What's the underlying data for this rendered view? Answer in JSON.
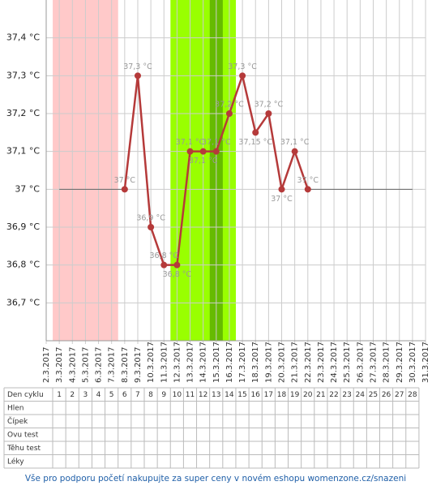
{
  "chart_data": {
    "type": "line",
    "categories": [
      "2.3.2017",
      "3.3.2017",
      "4.3.2017",
      "5.3.2017",
      "6.3.2017",
      "7.3.2017",
      "8.3.2017",
      "9.3.2017",
      "10.3.2017",
      "11.3.2017",
      "12.3.2017",
      "13.3.2017",
      "14.3.2017",
      "15.3.2017",
      "16.3.2017",
      "17.3.2017",
      "18.3.2017",
      "19.3.2017",
      "20.3.2017",
      "21.3.2017",
      "22.3.2017",
      "23.3.2017",
      "24.3.2017",
      "25.3.2017",
      "26.3.2017",
      "27.3.2017",
      "28.3.2017",
      "29.3.2017",
      "30.3.2017",
      "31.3.2017"
    ],
    "series": [
      {
        "color": "#b53a3a",
        "values": [
          null,
          null,
          null,
          null,
          null,
          null,
          37,
          37.3,
          36.9,
          36.8,
          36.8,
          37.1,
          37.1,
          37.1,
          37.2,
          37.3,
          37.15,
          37.2,
          37,
          37.1,
          37,
          null,
          null,
          null,
          null,
          null,
          null,
          null,
          null,
          null
        ],
        "value_labels": [
          null,
          null,
          null,
          null,
          null,
          null,
          "37 °C",
          "37,3 °C",
          "36,9 °C",
          "36,8 °C",
          "36,8 °C",
          "37,1 °C",
          "37,1 °C",
          "37,1 °C",
          "37,2 °C",
          "37,3 °C",
          "37,15 °C",
          "37,2 °C",
          "37 °C",
          "37,1 °C",
          "37 °C",
          null,
          null,
          null,
          null,
          null,
          null,
          null,
          null,
          null
        ]
      },
      {
        "color": "#666666",
        "values": [
          null,
          37,
          37,
          37,
          37,
          37,
          37,
          null,
          null,
          null,
          null,
          null,
          null,
          null,
          null,
          null,
          null,
          null,
          null,
          null,
          37,
          37,
          37,
          37,
          37,
          37,
          37,
          37,
          37,
          null
        ]
      }
    ],
    "bands": [
      {
        "start": 1,
        "end": 5,
        "color": "#ffc9c9"
      },
      {
        "start": 10,
        "end": 14,
        "color": "#99ff00"
      },
      {
        "start": 13,
        "end": 13,
        "color": "#66bb00"
      }
    ],
    "ylim": [
      36.6,
      37.5
    ],
    "yticks": [
      {
        "value": 36.7,
        "label": "36,7 °C"
      },
      {
        "value": 36.8,
        "label": "36,8 °C"
      },
      {
        "value": 36.9,
        "label": "36,9 °C"
      },
      {
        "value": 37,
        "label": "37 °C"
      },
      {
        "value": 37.1,
        "label": "37,1 °C"
      },
      {
        "value": 37.2,
        "label": "37,2 °C"
      },
      {
        "value": 37.3,
        "label": "37,3 °C"
      },
      {
        "value": 37.4,
        "label": "37,4 °C"
      }
    ],
    "grid": true
  },
  "table": {
    "header": "Den cyklu",
    "days": [
      1,
      2,
      3,
      4,
      5,
      6,
      7,
      8,
      9,
      10,
      11,
      12,
      13,
      14,
      15,
      16,
      17,
      18,
      19,
      20,
      21,
      22,
      23,
      24,
      25,
      26,
      27,
      28
    ],
    "rows": [
      "Hlen",
      "Čípek",
      "Ovu test",
      "Těhu test",
      "Léky"
    ]
  },
  "footer_link": "Vše pro podporu početí nakupujte za super ceny v novém eshopu womenzone.cz/snazeni"
}
